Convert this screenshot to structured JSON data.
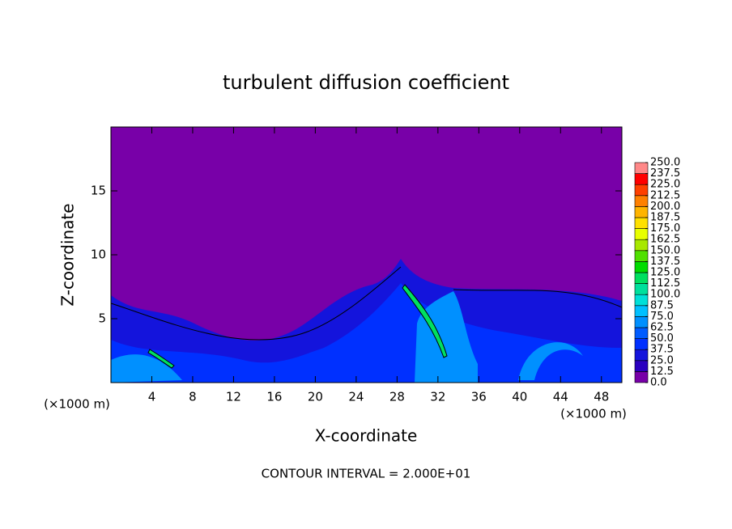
{
  "chart_data": {
    "type": "contour",
    "title": "turbulent diffusion coefficient",
    "x_label": "X-coordinate",
    "y_label": "Z-coordinate",
    "x_unit_labels": [
      "(×1000 m)",
      "(×1000 m)"
    ],
    "annotation": "CONTOUR INTERVAL = 2.000E+01",
    "xlim": [
      0,
      50
    ],
    "xticks": [
      4,
      8,
      12,
      16,
      20,
      24,
      28,
      32,
      36,
      40,
      44,
      48
    ],
    "ylim": [
      0,
      20
    ],
    "yticks": [
      5,
      10,
      15
    ],
    "colorbar": {
      "levels": [
        {
          "value": 0,
          "label": "0.0"
        },
        12.5,
        {
          "value": 25,
          "label": "25.0"
        },
        37.5,
        {
          "value": 50,
          "label": "50.0"
        },
        62.5,
        {
          "value": 75,
          "label": "75.0"
        },
        87.5,
        {
          "value": 100,
          "label": "100.0"
        },
        112.5,
        {
          "value": 125,
          "label": "125.0"
        },
        137.5,
        {
          "value": 150,
          "label": "150.0"
        },
        162.5,
        {
          "value": 175,
          "label": "175.0"
        },
        187.5,
        {
          "value": 200,
          "label": "200.0"
        },
        212.5,
        {
          "value": 225,
          "label": "225.0"
        },
        237.5,
        {
          "value": 250,
          "label": "250.0"
        }
      ],
      "colors": [
        "#7800a8",
        "#2a00c0",
        "#1414dc",
        "#0030ff",
        "#005cff",
        "#0090ff",
        "#00c0ff",
        "#00e0d8",
        "#00e09c",
        "#00e060",
        "#00dc00",
        "#50e000",
        "#a8e800",
        "#e8ff00",
        "#ffe000",
        "#ffb400",
        "#ff8000",
        "#ff4000",
        "#ff0000",
        "#ff8888"
      ]
    }
  }
}
